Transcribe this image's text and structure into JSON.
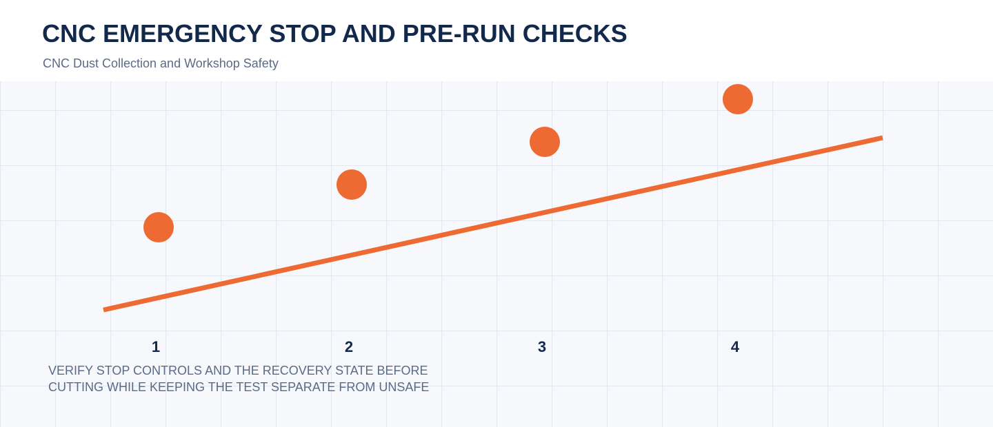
{
  "header": {
    "title": "CNC EMERGENCY STOP AND PRE-RUN CHECKS",
    "subtitle": "CNC Dust Collection and Workshop Safety"
  },
  "steps": [
    {
      "label": "1"
    },
    {
      "label": "2"
    },
    {
      "label": "3"
    },
    {
      "label": "4"
    }
  ],
  "caption": "VERIFY STOP CONTROLS AND THE RECOVERY STATE BEFORE\nCUTTING WHILE KEEPING THE TEST SEPARATE FROM UNSAFE",
  "colors": {
    "accent": "#ee6a33",
    "title": "#13294b",
    "muted": "#5a6b85",
    "grid": "#e3e7ef",
    "canvas": "#f7f8fc"
  }
}
